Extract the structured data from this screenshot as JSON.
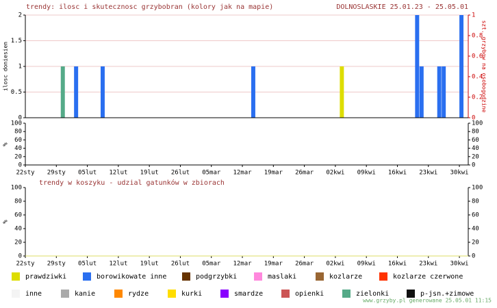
{
  "chart_data": [
    {
      "type": "bar",
      "title": "trendy: ilosc i skutecznosc grzybobran (kolory jak na mapie)",
      "subtitle": "DOLNOSLASKIE 25.01.23 - 25.05.01",
      "ylabel": "ilosc doniesien",
      "y2label": "szt. grzybow na osobogodzine",
      "xlim": [
        0,
        100
      ],
      "ylim": [
        0,
        2
      ],
      "yticks": [
        0,
        0.5,
        1,
        1.5,
        2
      ],
      "y2lim": [
        0,
        1
      ],
      "y2ticks": [
        0,
        0.2,
        0.4,
        0.6,
        0.8,
        1
      ],
      "grid": true,
      "series": [
        {
          "name": "prawdziwki",
          "color": "#dddd00",
          "x": [
            71
          ],
          "values": [
            1
          ]
        },
        {
          "name": "borowikowate inne",
          "color": "#2a6ff0",
          "x": [
            11,
            17,
            51,
            88,
            89,
            93,
            94,
            98
          ],
          "values": [
            1,
            1,
            1,
            2,
            1,
            1,
            1,
            2
          ]
        },
        {
          "name": "podgrzybki",
          "color": "#663300",
          "x": [],
          "values": []
        },
        {
          "name": "maslaki",
          "color": "#ff88dd",
          "x": [],
          "values": []
        },
        {
          "name": "kozlarze",
          "color": "#996633",
          "x": [],
          "values": []
        },
        {
          "name": "kozlarze czerwone",
          "color": "#ff3300",
          "x": [],
          "values": []
        },
        {
          "name": "inne",
          "color": "#f4f4f4",
          "x": [],
          "values": []
        },
        {
          "name": "kanie",
          "color": "#aaaaaa",
          "x": [],
          "values": []
        },
        {
          "name": "rydze",
          "color": "#ff8800",
          "x": [],
          "values": []
        },
        {
          "name": "kurki",
          "color": "#ffdd00",
          "x": [],
          "values": []
        },
        {
          "name": "smardze",
          "color": "#8800ff",
          "x": [],
          "values": []
        },
        {
          "name": "opienki",
          "color": "#cc5555",
          "x": [],
          "values": []
        },
        {
          "name": "zielonki",
          "color": "#55aa88",
          "x": [
            8
          ],
          "values": [
            1
          ]
        },
        {
          "name": "p-jsn.+zimowe",
          "color": "#111111",
          "x": [],
          "values": []
        }
      ]
    },
    {
      "type": "bar",
      "ylabel": "%",
      "xlim": [
        0,
        100
      ],
      "xticks": [
        {
          "value": 0,
          "label": "22sty"
        },
        {
          "value": 7,
          "label": "29sty"
        },
        {
          "value": 14,
          "label": "05lut"
        },
        {
          "value": 21,
          "label": "12lut"
        },
        {
          "value": 28,
          "label": "19lut"
        },
        {
          "value": 35,
          "label": "26lut"
        },
        {
          "value": 42,
          "label": "05mar"
        },
        {
          "value": 49,
          "label": "12mar"
        },
        {
          "value": 56,
          "label": "19mar"
        },
        {
          "value": 63,
          "label": "26mar"
        },
        {
          "value": 70,
          "label": "02kwi"
        },
        {
          "value": 77,
          "label": "09kwi"
        },
        {
          "value": 84,
          "label": "16kwi"
        },
        {
          "value": 91,
          "label": "23kwi"
        },
        {
          "value": 98,
          "label": "30kwi"
        }
      ],
      "ylim": [
        0,
        100
      ],
      "yticks": [
        0,
        20,
        40,
        60,
        80,
        100
      ],
      "y2lim": [
        0,
        100
      ],
      "y2ticks": [
        0,
        20,
        40,
        60,
        80,
        100
      ],
      "series": []
    },
    {
      "type": "bar",
      "title": "trendy w koszyku - udzial gatunków w zbiorach",
      "ylabel": "%",
      "xlim": [
        0,
        100
      ],
      "xticks": [
        {
          "value": 0,
          "label": "22sty"
        },
        {
          "value": 7,
          "label": "29sty"
        },
        {
          "value": 14,
          "label": "05lut"
        },
        {
          "value": 21,
          "label": "12lut"
        },
        {
          "value": 28,
          "label": "19lut"
        },
        {
          "value": 35,
          "label": "26lut"
        },
        {
          "value": 42,
          "label": "05mar"
        },
        {
          "value": 49,
          "label": "12mar"
        },
        {
          "value": 56,
          "label": "19mar"
        },
        {
          "value": 63,
          "label": "26mar"
        },
        {
          "value": 70,
          "label": "02kwi"
        },
        {
          "value": 77,
          "label": "09kwi"
        },
        {
          "value": 84,
          "label": "16kwi"
        },
        {
          "value": 91,
          "label": "23kwi"
        },
        {
          "value": 98,
          "label": "30kwi"
        }
      ],
      "ylim": [
        0,
        100
      ],
      "yticks": [
        0,
        20,
        40,
        60,
        80,
        100
      ],
      "y2lim": [
        0,
        100
      ],
      "y2ticks": [
        0,
        20,
        40,
        60,
        80,
        100
      ],
      "series": []
    }
  ],
  "footer": "www.grzyby.pl generowane 25.05.01  11:15"
}
